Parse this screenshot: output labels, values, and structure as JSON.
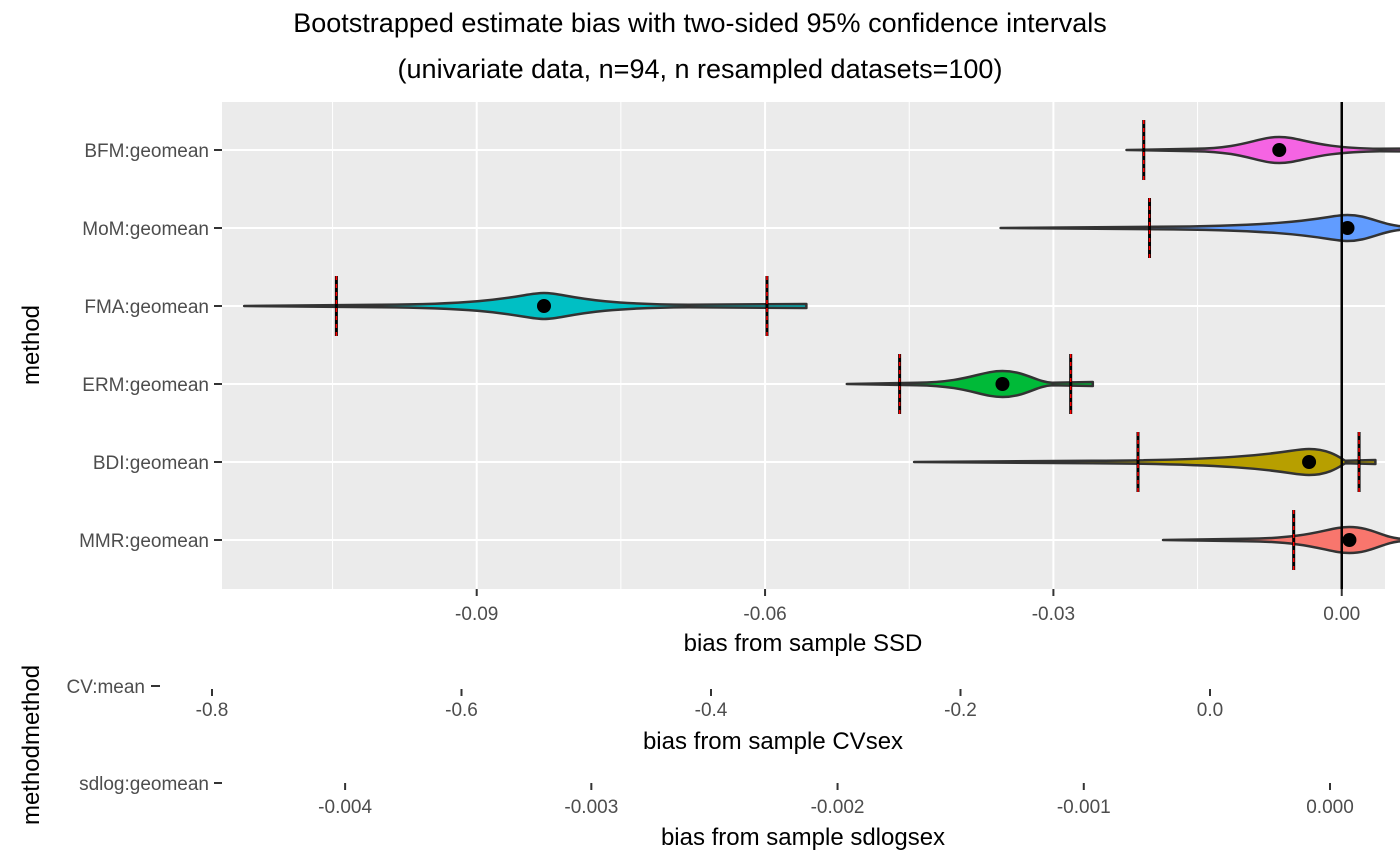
{
  "chart_data": {
    "type": "violin",
    "title": "Bootstrapped estimate bias with two-sided 95% confidence intervals",
    "subtitle": "(univariate data, n=94, n resampled datasets=100)",
    "panels": [
      {
        "xlabel": "bias from sample SSD",
        "ylabel": "method",
        "xlim": [
          -0.1165,
          0.0045
        ],
        "x_ticks": [
          -0.09,
          -0.06,
          -0.03,
          0.0
        ],
        "x_tick_labels": [
          "-0.09",
          "-0.06",
          "-0.03",
          "0.00"
        ],
        "categories": [
          "BFM:geomean",
          "MoM:geomean",
          "FMA:geomean",
          "ERM:geomean",
          "BDI:geomean",
          "MMR:geomean"
        ],
        "reference_line_x": 0.0,
        "grid": true,
        "series": [
          {
            "category": "BFM:geomean",
            "color": "#F564E3",
            "min": -0.0224,
            "max": 0.0125,
            "median": -0.0065,
            "ci": [
              -0.0206,
              0.0088
            ]
          },
          {
            "category": "MoM:geomean",
            "color": "#619CFF",
            "min": -0.0355,
            "max": 0.0122,
            "median": 0.0006,
            "ci": [
              -0.02,
              0.0116
            ]
          },
          {
            "category": "FMA:geomean",
            "color": "#00BFC4",
            "min": -0.1142,
            "max": -0.0557,
            "median": -0.083,
            "ci": [
              -0.1046,
              -0.0598
            ]
          },
          {
            "category": "ERM:geomean",
            "color": "#00BA38",
            "min": -0.0515,
            "max": -0.0259,
            "median": -0.0353,
            "ci": [
              -0.046,
              -0.0282
            ]
          },
          {
            "category": "BDI:geomean",
            "color": "#B79F00",
            "min": -0.0445,
            "max": 0.0035,
            "median": -0.0034,
            "ci": [
              -0.0212,
              0.0018
            ]
          },
          {
            "category": "MMR:geomean",
            "color": "#F8766D",
            "min": -0.0186,
            "max": 0.0108,
            "median": 0.0008,
            "ci": [
              -0.005,
              0.0104
            ]
          }
        ]
      },
      {
        "xlabel": "bias from sample CVsex",
        "ylabel": "methodmethod",
        "xlim": [
          -0.8,
          0.0
        ],
        "x_ticks": [
          -0.8,
          -0.6,
          -0.4,
          -0.2,
          0.0
        ],
        "x_tick_labels": [
          "-0.8",
          "-0.6",
          "-0.4",
          "-0.2",
          "0.0"
        ],
        "categories": [
          "CV:mean"
        ]
      },
      {
        "xlabel": "bias from sample sdlogsex",
        "ylabel": "",
        "xlim": [
          -0.0045,
          0.0
        ],
        "x_ticks": [
          -0.004,
          -0.003,
          -0.002,
          -0.001,
          0.0
        ],
        "x_tick_labels": [
          "-0.004",
          "-0.003",
          "-0.002",
          "-0.001",
          "0.000"
        ],
        "categories": [
          "sdlog:geomean"
        ]
      }
    ]
  }
}
